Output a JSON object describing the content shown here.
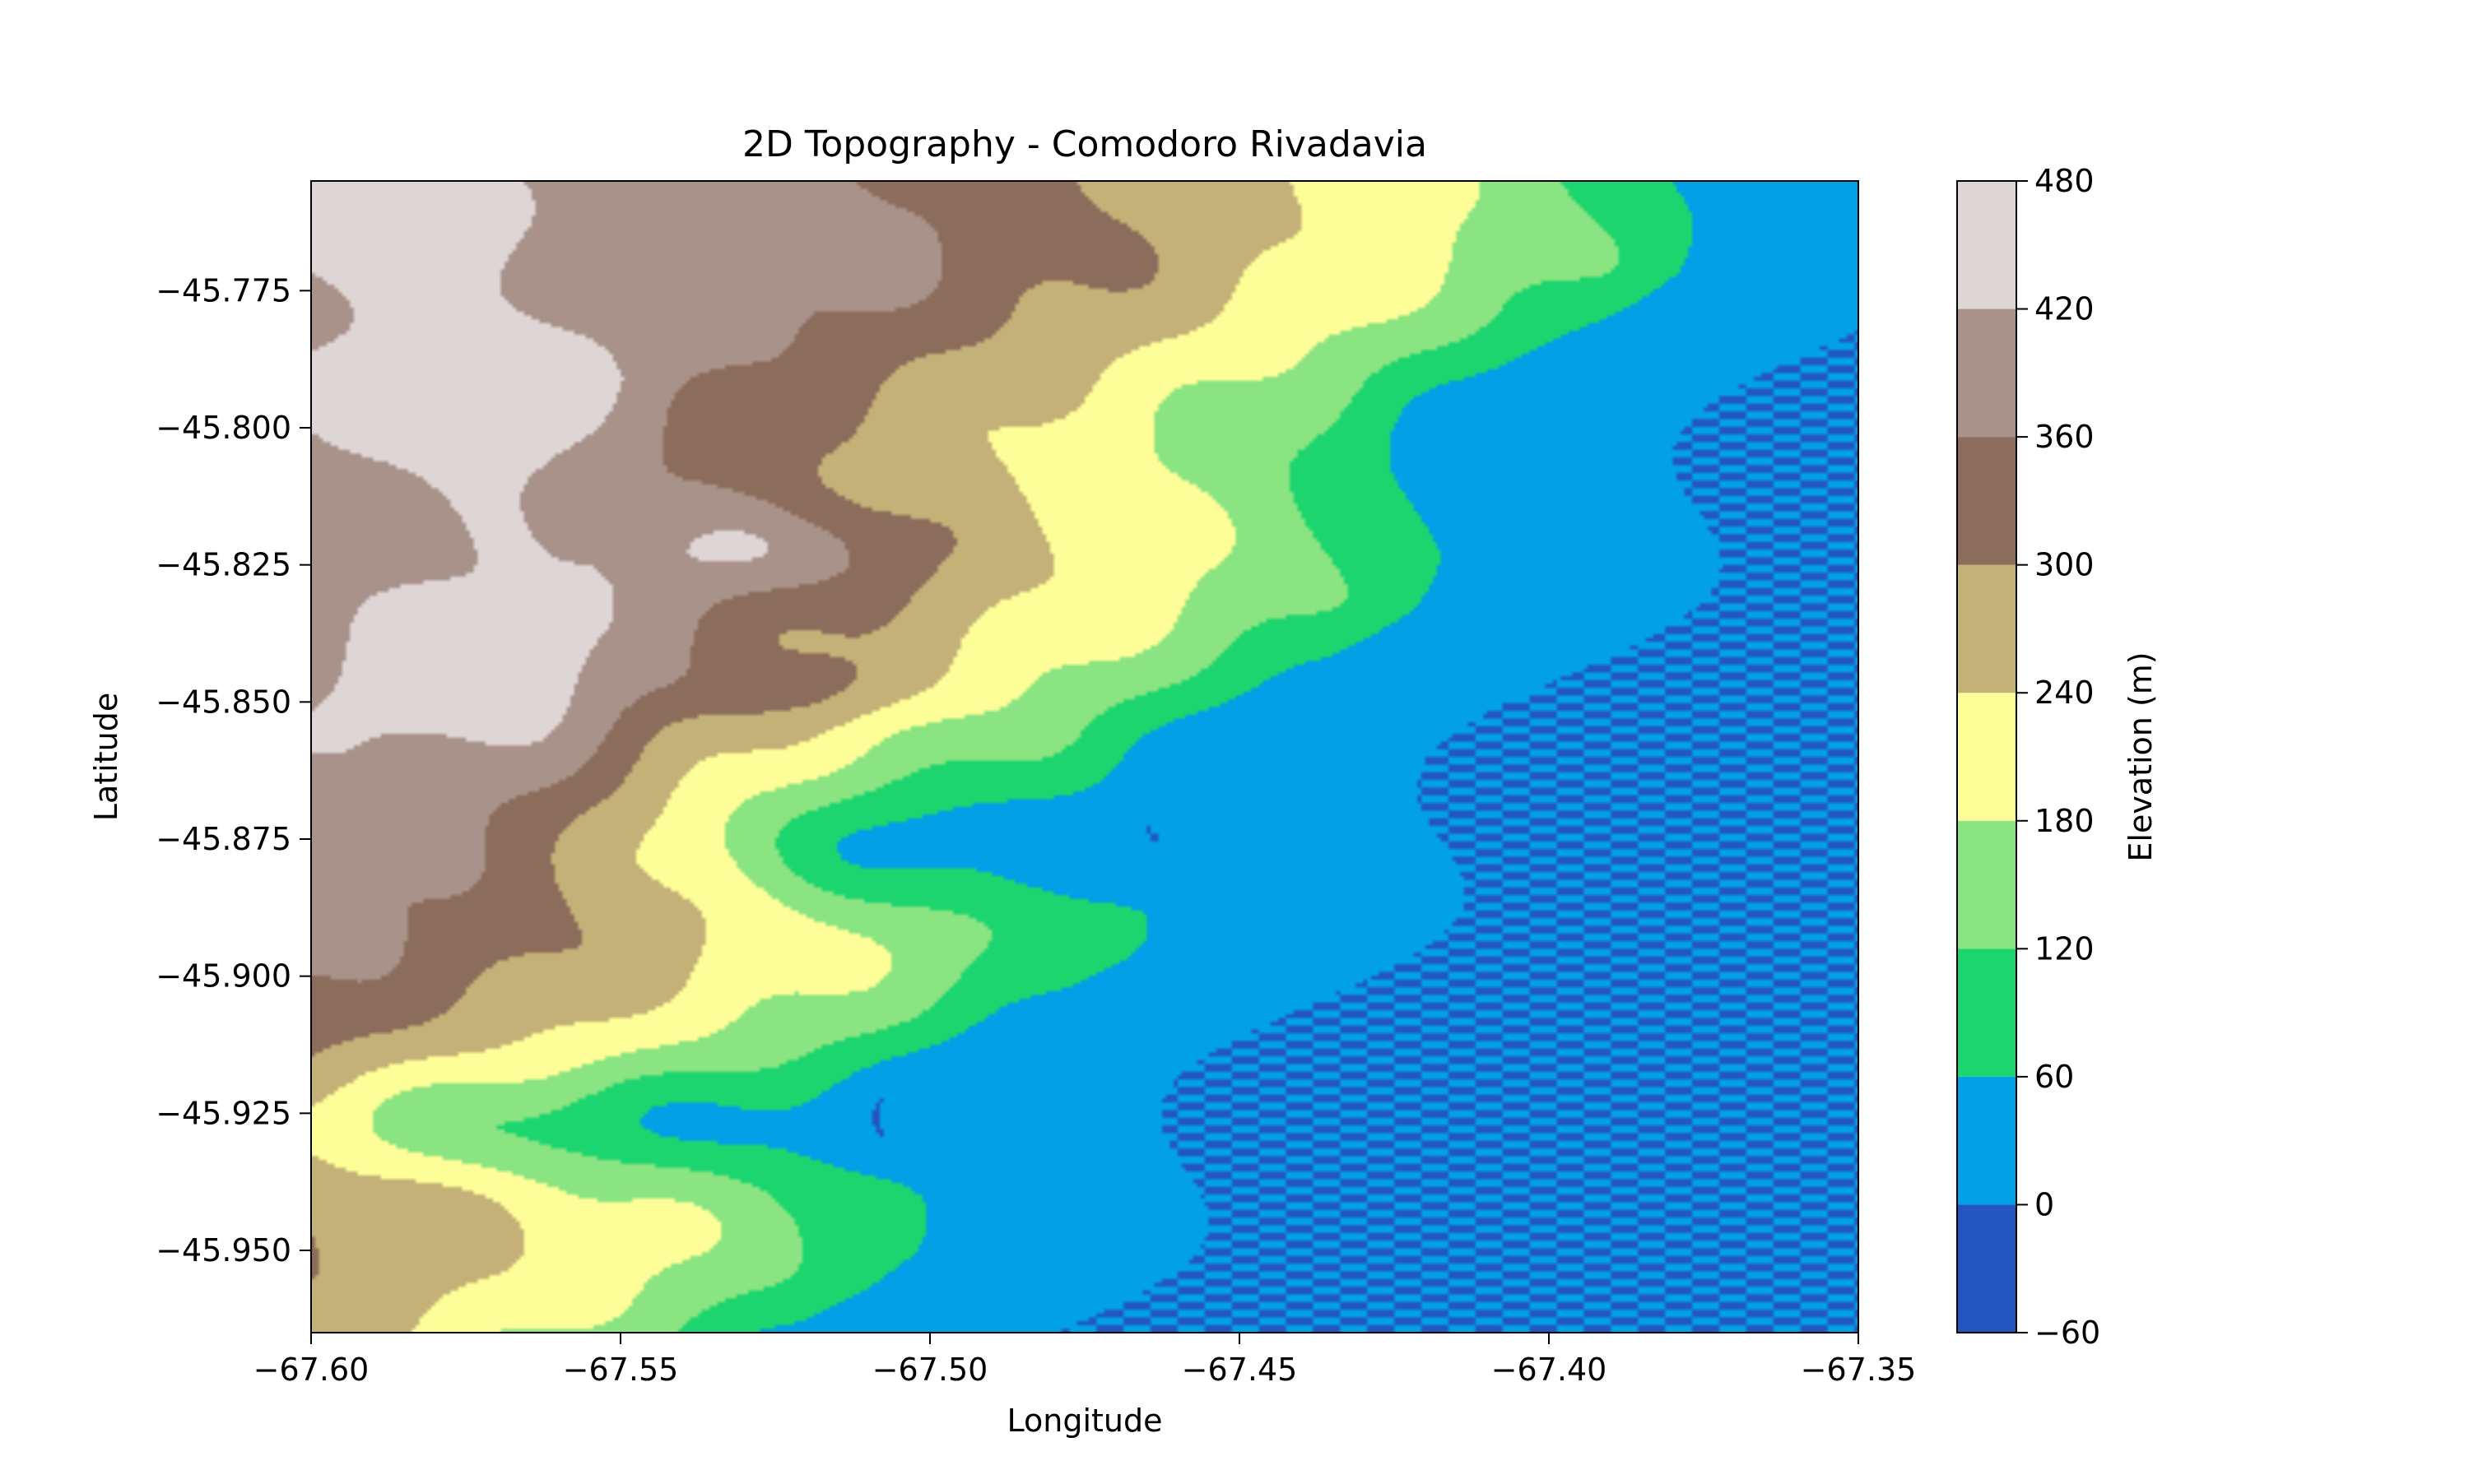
{
  "chart_data": {
    "type": "heatmap",
    "subtype": "filled-contour",
    "title": "2D Topography - Comodoro Rivadavia",
    "xlabel": "Longitude",
    "ylabel": "Latitude",
    "xlim": [
      -67.6,
      -67.35
    ],
    "ylim": [
      -45.965,
      -45.755
    ],
    "x_ticks": [
      -67.6,
      -67.55,
      -67.5,
      -67.45,
      -67.4,
      -67.35
    ],
    "x_tick_labels": [
      "−67.60",
      "−67.55",
      "−67.50",
      "−67.45",
      "−67.40",
      "−67.35"
    ],
    "y_ticks": [
      -45.775,
      -45.8,
      -45.825,
      -45.85,
      -45.875,
      -45.9,
      -45.925,
      -45.95
    ],
    "y_tick_labels": [
      "−45.775",
      "−45.800",
      "−45.825",
      "−45.850",
      "−45.875",
      "−45.900",
      "−45.925",
      "−45.950"
    ],
    "colorbar": {
      "label": "Elevation (m)",
      "levels": [
        -60,
        0,
        60,
        120,
        180,
        240,
        300,
        360,
        420,
        480
      ],
      "level_labels": [
        "−60",
        "0",
        "60",
        "120",
        "180",
        "240",
        "300",
        "360",
        "420",
        "480"
      ],
      "colors": [
        "#2356be",
        "#02a0e6",
        "#1dd56e",
        "#89e481",
        "#fefe98",
        "#c4b177",
        "#8c6d5b",
        "#a8928a",
        "#ded5d5"
      ]
    },
    "grid": false
  }
}
